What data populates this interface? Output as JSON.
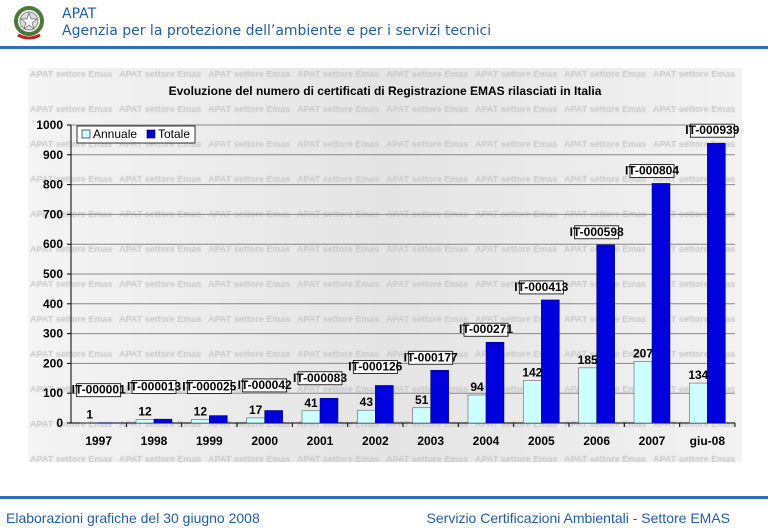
{
  "header": {
    "org": "APAT",
    "subtitle": "Agenzia per la protezione dell’ambiente e per i servizi tecnici"
  },
  "footer": {
    "left": "Elaborazioni grafiche del 30 giugno 2008",
    "right": "Servizio Certificazioni Ambientali - Settore EMAS"
  },
  "watermark": "APAT settore Emas",
  "chart_data": {
    "type": "bar",
    "title": "Evoluzione del numero di certificati di Registrazione EMAS rilasciati in Italia",
    "categories": [
      "1997",
      "1998",
      "1999",
      "2000",
      "2001",
      "2002",
      "2003",
      "2004",
      "2005",
      "2006",
      "2007",
      "giu-08"
    ],
    "series": [
      {
        "name": "Annuale",
        "color": "#ccffff",
        "values": [
          1,
          12,
          12,
          17,
          41,
          43,
          51,
          94,
          142,
          185,
          207,
          134
        ],
        "labels": [
          "1",
          "12",
          "12",
          "17",
          "41",
          "43",
          "51",
          "94",
          "142",
          "185",
          "207",
          "134"
        ]
      },
      {
        "name": "Totale",
        "color": "#0000dd",
        "values": [
          1,
          13,
          25,
          42,
          83,
          126,
          177,
          271,
          413,
          598,
          804,
          939
        ],
        "labels": [
          "IT-000001",
          "IT-000013",
          "IT-000025",
          "IT-000042",
          "IT-000083",
          "IT-000126",
          "IT-000177",
          "IT-000271",
          "IT-000413",
          "IT-000598",
          "IT-000804",
          "IT-000939"
        ]
      }
    ],
    "yticks": [
      "0",
      "100",
      "200",
      "300",
      "400",
      "500",
      "600",
      "700",
      "800",
      "900",
      "1000"
    ],
    "ylim": [
      0,
      1000
    ],
    "grid": true,
    "legend": "top-left"
  }
}
